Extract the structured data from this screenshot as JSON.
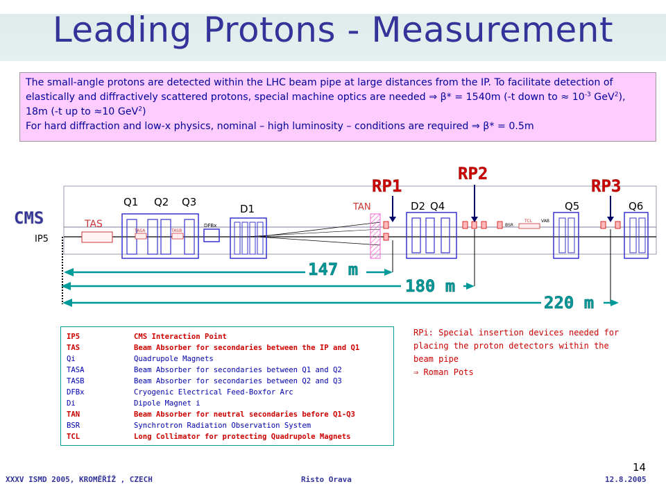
{
  "slide": {
    "title": "Leading Protons - Measurement",
    "intro": {
      "line1": "The small-angle protons are detected within the LHC beam pipe at large distances from the IP. To facilitate detection of elastically and diffractively scattered protons, special machine optics are needed",
      "line1_formula": "⇒ β* = 1540m (-t down to ≈ 10",
      "exp1": "-3",
      "unit1": " GeV",
      "exp2": "2",
      "mid": "), 18m (-t up to ≈10 GeV",
      "exp3": "2",
      "close": ")",
      "line2": "For hard diffraction and low-x physics, nominal – high luminosity – conditions are required ⇒ β* = 0.5m"
    },
    "diagram": {
      "cms": "CMS",
      "ip5": "IP5",
      "elements": {
        "tas": "TAS",
        "q1": "Q1",
        "q2": "Q2",
        "q3": "Q3",
        "tasa": "TASA",
        "tasb": "TASB",
        "dfbx": "DFBx",
        "d1": "D1",
        "tan": "TAN",
        "d2": "D2",
        "q4": "Q4",
        "bsr": "BSR",
        "tcl": "TCL",
        "vab": "VAB",
        "q5": "Q5",
        "q6": "Q6"
      },
      "roman_pots": [
        "RP1",
        "RP2",
        "RP3"
      ],
      "distances": [
        "147 m",
        "180 m",
        "220 m"
      ]
    },
    "legend": [
      {
        "abbr": "IP5",
        "desc": "CMS Interaction Point",
        "style": "red-bold"
      },
      {
        "abbr": "TAS",
        "desc": "Beam Absorber for secondaries between the IP and Q1",
        "style": "red-bold"
      },
      {
        "abbr": "Qi",
        "desc": "Quadrupole Magnets",
        "style": "blue"
      },
      {
        "abbr": "TASA",
        "desc": "Beam Absorber for secondaries between Q1 and Q2",
        "style": "blue"
      },
      {
        "abbr": "TASB",
        "desc": "Beam Absorber for secondaries between Q2 and Q3",
        "style": "blue"
      },
      {
        "abbr": "DFBx",
        "desc": "Cryogenic Electrical Feed-Boxfor Arc",
        "style": "blue"
      },
      {
        "abbr": "Di",
        "desc": "Dipole Magnet i",
        "style": "blue"
      },
      {
        "abbr": "TAN",
        "desc": "Beam Absorber for neutral secondaries before Q1-Q3",
        "style": "red-bold"
      },
      {
        "abbr": "BSR",
        "desc": "Synchrotron Radiation Observation System",
        "style": "blue"
      },
      {
        "abbr": "TCL",
        "desc": "Long Collimator for protecting Quadrupole Magnets",
        "style": "red-bold"
      }
    ],
    "rp_note": {
      "line1": "RPi: Special insertion devices needed for placing the proton detectors within the beam pipe",
      "line2": "⇒ Roman Pots"
    },
    "footer": {
      "left": "XXXV ISMD 2005, KROMĚŘÍŽ , CZECH",
      "center": "Risto Orava",
      "right": "12.8.2005",
      "page": "14"
    },
    "colors": {
      "title": "#333399",
      "intro_bg": "#ffccff",
      "rp_label": "#cc0000",
      "distance": "#009999",
      "element": "#3333cc"
    }
  }
}
